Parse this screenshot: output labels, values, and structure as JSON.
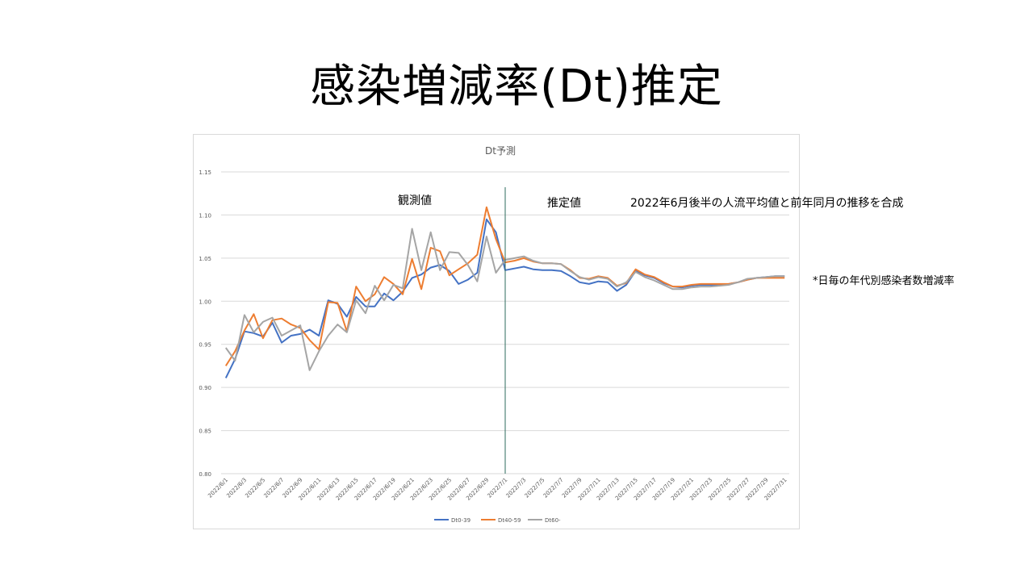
{
  "slide": {
    "title": "感染増減率(Dt)推定"
  },
  "notes": {
    "observed": "観測値",
    "estimated": "推定値",
    "method": "2022年6月後半の人流平均値と前年同月の推移を合成",
    "right_note": "*日毎の年代別感染者数増減率"
  },
  "chart_data": {
    "type": "line",
    "title": "Dt予測",
    "ylim": [
      0.8,
      1.15
    ],
    "yticks": [
      "0.80",
      "0.85",
      "0.90",
      "0.95",
      "1.00",
      "1.05",
      "1.10",
      "1.15"
    ],
    "grid": true,
    "legend_position": "bottom",
    "x_tick_labels": [
      "2022/6/1",
      "2022/6/3",
      "2022/6/5",
      "2022/6/7",
      "2022/6/9",
      "2022/6/11",
      "2022/6/13",
      "2022/6/15",
      "2022/6/17",
      "2022/6/19",
      "2022/6/21",
      "2022/6/23",
      "2022/6/25",
      "2022/6/27",
      "2022/6/29",
      "2022/7/1",
      "2022/7/3",
      "2022/7/5",
      "2022/7/7",
      "2022/7/9",
      "2022/7/11",
      "2022/7/13",
      "2022/7/15",
      "2022/7/17",
      "2022/7/19",
      "2022/7/21",
      "2022/7/23",
      "2022/7/25",
      "2022/7/27",
      "2022/7/29",
      "2022/7/31"
    ],
    "divider_at": "2022/7/1",
    "series": [
      {
        "name": "Dt0-39",
        "color": "#4472c4",
        "values": [
          0.911,
          0.933,
          0.965,
          0.963,
          0.959,
          0.975,
          0.952,
          0.96,
          0.962,
          0.967,
          0.96,
          1.001,
          0.997,
          0.982,
          1.005,
          0.994,
          0.994,
          1.009,
          1.001,
          1.011,
          1.027,
          1.031,
          1.039,
          1.042,
          1.035,
          1.02,
          1.025,
          1.033,
          1.095,
          1.08,
          1.036,
          1.038,
          1.04,
          1.037,
          1.036,
          1.036,
          1.035,
          1.029,
          1.022,
          1.02,
          1.023,
          1.022,
          1.012,
          1.019,
          1.035,
          1.03,
          1.027,
          1.021,
          1.017,
          1.016,
          1.018,
          1.019,
          1.019,
          1.019,
          1.02,
          1.022,
          1.025,
          1.027,
          1.028,
          1.029,
          1.029
        ]
      },
      {
        "name": "Dt40-59",
        "color": "#ed7d31",
        "values": [
          0.925,
          0.942,
          0.966,
          0.985,
          0.957,
          0.978,
          0.98,
          0.973,
          0.969,
          0.955,
          0.944,
          0.999,
          0.998,
          0.965,
          1.017,
          1.0,
          1.008,
          1.028,
          1.02,
          1.008,
          1.049,
          1.014,
          1.062,
          1.058,
          1.03,
          1.037,
          1.044,
          1.054,
          1.109,
          1.072,
          1.045,
          1.047,
          1.05,
          1.046,
          1.044,
          1.044,
          1.043,
          1.036,
          1.027,
          1.026,
          1.029,
          1.027,
          1.018,
          1.021,
          1.037,
          1.031,
          1.028,
          1.022,
          1.017,
          1.017,
          1.019,
          1.02,
          1.02,
          1.02,
          1.02,
          1.022,
          1.025,
          1.027,
          1.027,
          1.027,
          1.027
        ]
      },
      {
        "name": "Dt60-",
        "color": "#a5a5a5",
        "values": [
          0.946,
          0.931,
          0.984,
          0.964,
          0.976,
          0.981,
          0.96,
          0.966,
          0.972,
          0.92,
          0.942,
          0.96,
          0.973,
          0.964,
          1.001,
          0.986,
          1.018,
          1.001,
          1.019,
          1.015,
          1.084,
          1.036,
          1.08,
          1.036,
          1.057,
          1.056,
          1.042,
          1.023,
          1.075,
          1.033,
          1.048,
          1.05,
          1.052,
          1.047,
          1.044,
          1.044,
          1.043,
          1.035,
          1.028,
          1.025,
          1.028,
          1.026,
          1.017,
          1.022,
          1.034,
          1.028,
          1.024,
          1.019,
          1.014,
          1.014,
          1.016,
          1.017,
          1.017,
          1.018,
          1.019,
          1.022,
          1.026,
          1.027,
          1.028,
          1.029,
          1.029
        ]
      }
    ]
  }
}
